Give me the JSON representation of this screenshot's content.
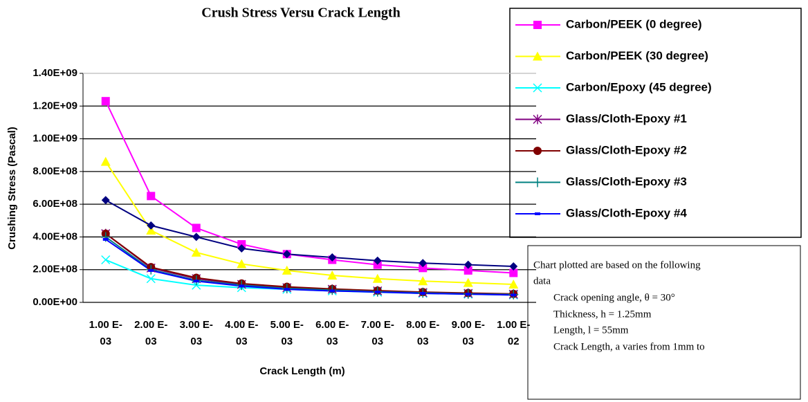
{
  "chart_data": {
    "type": "line",
    "title": "Crush Stress Versu Crack Length",
    "x_label": "Crack Length (m)",
    "y_label": "Crushing Stress (Pascal)",
    "categories": [
      "1.00 E-03",
      "2.00 E-03",
      "3.00 E-03",
      "4.00 E-03",
      "5.00 E-03",
      "6.00 E-03",
      "7.00 E-03",
      "8.00 E-03",
      "9.00 E-03",
      "1.00 E-02"
    ],
    "ylim": [
      0,
      1400000000
    ],
    "yticks": [
      {
        "value": 0,
        "label": "0.00E+00"
      },
      {
        "value": 200000000,
        "label": "2.00E+08"
      },
      {
        "value": 400000000,
        "label": "4.00E+08"
      },
      {
        "value": 600000000,
        "label": "6.00E+08"
      },
      {
        "value": 800000000,
        "label": "8.00E+08"
      },
      {
        "value": 1000000000,
        "label": "1.00E+09"
      },
      {
        "value": 1200000000,
        "label": "1.20E+09"
      },
      {
        "value": 1400000000,
        "label": "1.40E+09"
      }
    ],
    "grid": true,
    "series": [
      {
        "name": "Carbon/PEEK (0 degree)",
        "color": "#ff00ff",
        "marker": "square",
        "values": [
          1230000000,
          650000000,
          455000000,
          355000000,
          295000000,
          260000000,
          230000000,
          210000000,
          195000000,
          180000000
        ]
      },
      {
        "name": "Carbon/PEEK (30 degree)",
        "color": "#ffff00",
        "marker": "triangle",
        "values": [
          860000000,
          440000000,
          305000000,
          235000000,
          195000000,
          165000000,
          145000000,
          130000000,
          120000000,
          110000000
        ]
      },
      {
        "name": "Carbon/Epoxy (45 degree)",
        "color": "#00ffff",
        "marker": "x",
        "values": [
          260000000,
          145000000,
          105000000,
          90000000,
          80000000,
          70000000,
          62000000,
          55000000,
          50000000,
          45000000
        ]
      },
      {
        "name": "Glass/Cloth-Epoxy #1",
        "color": "#800080",
        "marker": "star",
        "values": [
          420000000,
          210000000,
          145000000,
          110000000,
          90000000,
          80000000,
          70000000,
          60000000,
          55000000,
          50000000
        ]
      },
      {
        "name": "Glass/Cloth-Epoxy #2",
        "color": "#800000",
        "marker": "circle",
        "values": [
          420000000,
          215000000,
          150000000,
          115000000,
          95000000,
          82000000,
          72000000,
          63000000,
          57000000,
          52000000
        ]
      },
      {
        "name": "Glass/Cloth-Epoxy #3",
        "color": "#008080",
        "marker": "plus",
        "values": [
          400000000,
          200000000,
          135000000,
          105000000,
          85000000,
          75000000,
          65000000,
          58000000,
          52000000,
          48000000
        ]
      },
      {
        "name": "Glass/Cloth-Epoxy #4",
        "color": "#0000ff",
        "marker": "dash",
        "values": [
          385000000,
          195000000,
          130000000,
          100000000,
          80000000,
          70000000,
          63000000,
          55000000,
          50000000,
          45000000
        ]
      },
      {
        "color": "#000080",
        "marker": "diamond",
        "values": [
          625000000,
          470000000,
          400000000,
          330000000,
          295000000,
          275000000,
          255000000,
          240000000,
          230000000,
          220000000
        ]
      }
    ],
    "note": {
      "lines": [
        "Chart plotted are based on the following",
        "data",
        "Crack opening angle, θ = 30°",
        "Thickness, h = 1.25mm",
        "Length, l = 55mm",
        "Crack Length, a varies from 1mm to"
      ]
    }
  }
}
